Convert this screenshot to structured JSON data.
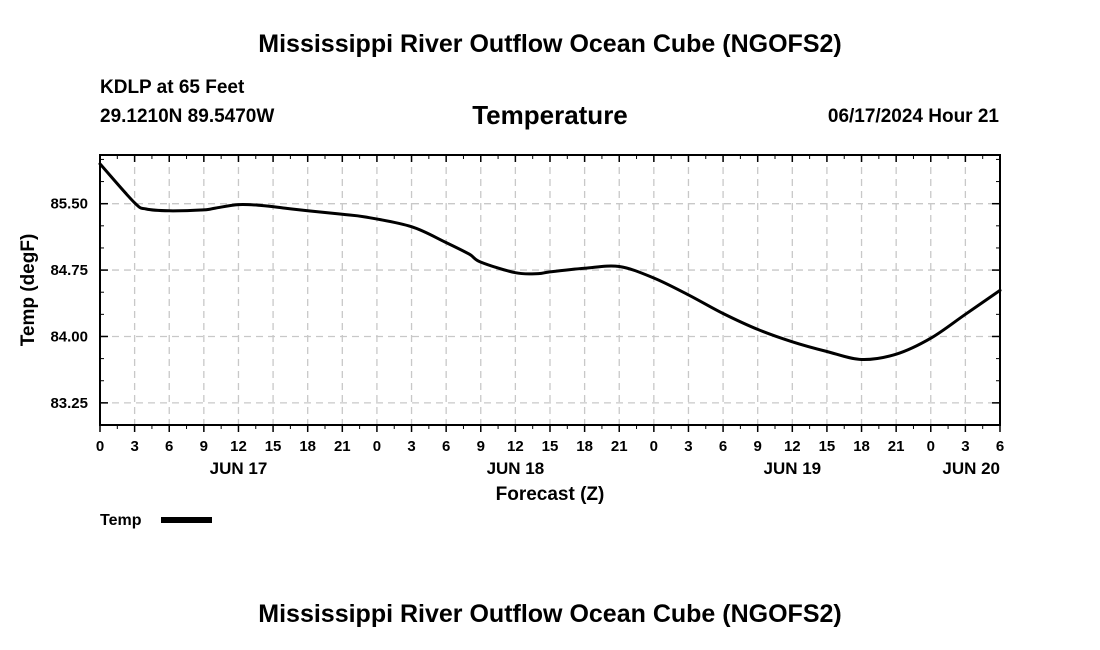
{
  "header": {
    "title_top": "Mississippi River Outflow Ocean Cube (NGOFS2)",
    "station": "KDLP at 65 Feet",
    "coords": "29.1210N  89.5470W",
    "variable": "Temperature",
    "datetime": "06/17/2024 Hour 21",
    "title_bottom": "Mississippi River Outflow Ocean Cube (NGOFS2)"
  },
  "chart_data": {
    "type": "line",
    "title": "Temperature",
    "xlabel": "Forecast (Z)",
    "ylabel": "Temp (degF)",
    "xlim": [
      0,
      78
    ],
    "ylim": [
      83.0,
      86.05
    ],
    "grid": true,
    "x_tick_labels": [
      "0",
      "3",
      "6",
      "9",
      "12",
      "15",
      "18",
      "21",
      "0",
      "3",
      "6",
      "9",
      "12",
      "15",
      "18",
      "21",
      "0",
      "3",
      "6",
      "9",
      "12",
      "15",
      "18",
      "21",
      "0",
      "3",
      "6"
    ],
    "day_labels": [
      {
        "label": "JUN 17",
        "hour": 12
      },
      {
        "label": "JUN 18",
        "hour": 36
      },
      {
        "label": "JUN 19",
        "hour": 60
      },
      {
        "label": "JUN 20",
        "hour": 78
      }
    ],
    "y_ticks": [
      83.25,
      84.0,
      84.75,
      85.5
    ],
    "y_tick_labels": [
      "83.25",
      "84.00",
      "84.75",
      "85.50"
    ],
    "legend": {
      "label": "Temp",
      "placement": "bottom-left"
    },
    "series": [
      {
        "name": "Temp",
        "x": [
          0,
          3,
          4,
          6,
          9,
          10,
          12,
          14,
          16,
          18,
          21,
          23,
          27,
          30,
          32,
          33,
          36,
          38,
          39,
          42,
          45,
          48,
          51,
          54,
          57,
          60,
          63,
          66,
          69,
          72,
          75,
          78
        ],
        "y": [
          85.95,
          85.51,
          85.44,
          85.42,
          85.43,
          85.45,
          85.49,
          85.48,
          85.45,
          85.42,
          85.38,
          85.35,
          85.24,
          85.06,
          84.93,
          84.84,
          84.72,
          84.71,
          84.73,
          84.77,
          84.79,
          84.66,
          84.47,
          84.26,
          84.08,
          83.94,
          83.83,
          83.74,
          83.8,
          83.98,
          84.25,
          84.52
        ]
      }
    ]
  }
}
